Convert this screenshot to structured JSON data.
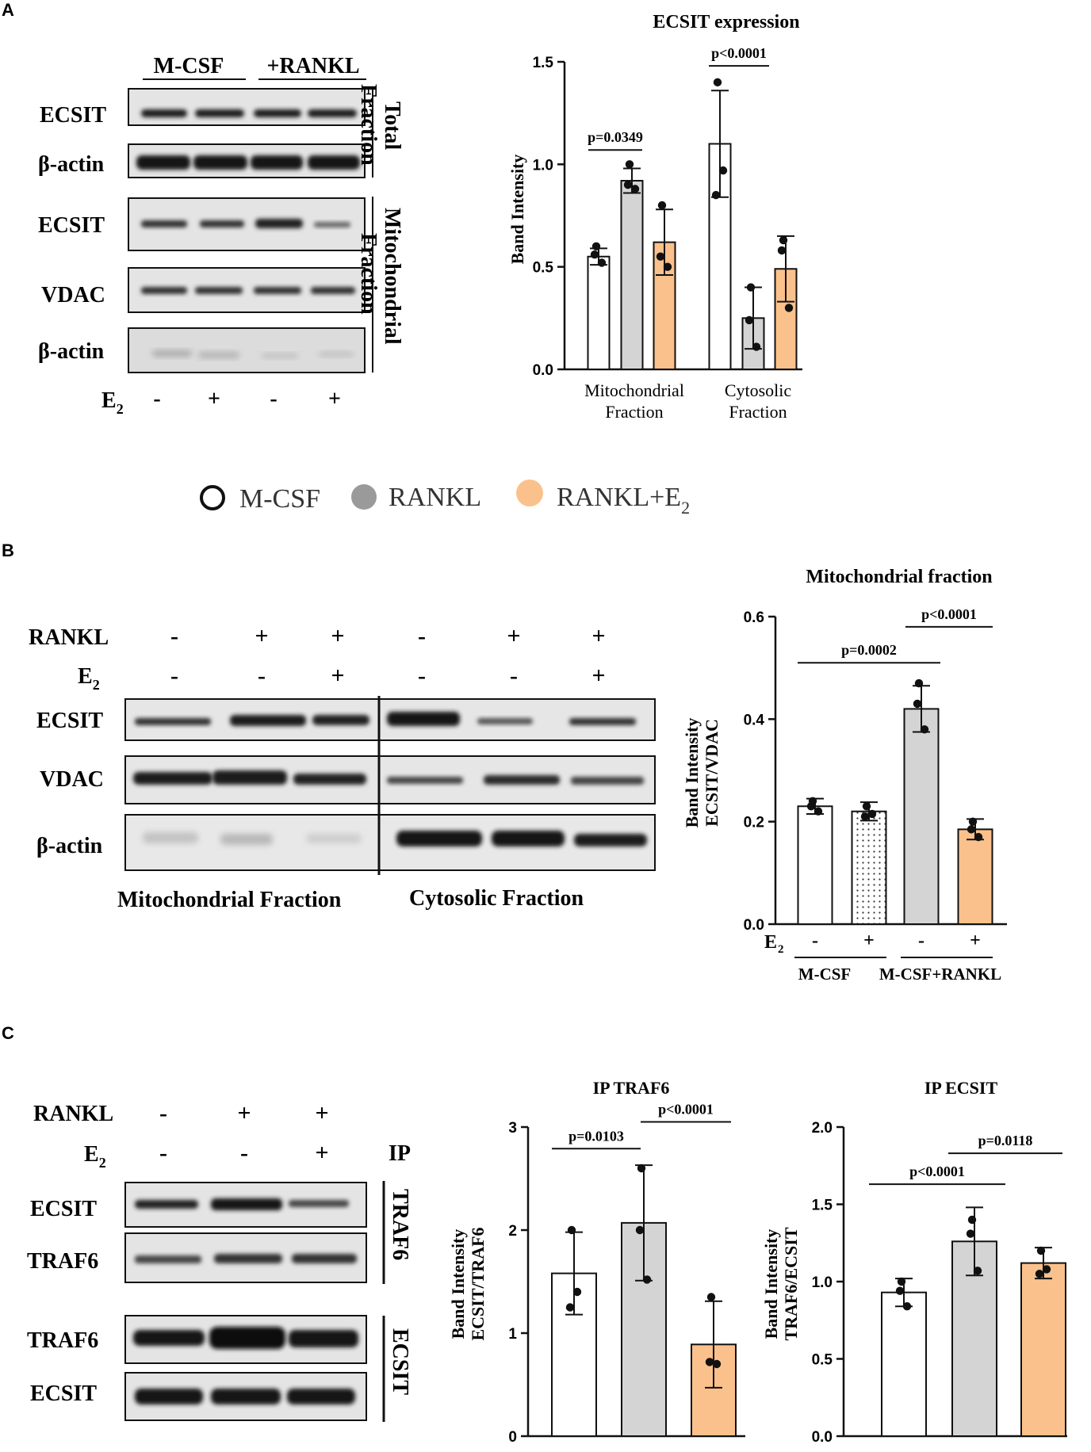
{
  "panels": {
    "a": "A",
    "b": "B",
    "c": "C"
  },
  "colors": {
    "mcsf": "#ffffff",
    "rankl": "#d4d4d4",
    "rankl_e2": "#fbc18c",
    "blot_bg": "#e2e2e2",
    "band": "#1c1c1c"
  },
  "legend": {
    "mcsf": "M-CSF",
    "rankl": "RANKL",
    "rankl_e2_main": "RANKL+E",
    "rankl_e2_sub": "2"
  },
  "e2": {
    "main": "E",
    "sub": "2"
  },
  "blot_a": {
    "groups": [
      "M-CSF",
      "+RANKL"
    ],
    "rows": [
      "ECSIT",
      "β-actin",
      "ECSIT",
      "VDAC",
      "β-actin"
    ],
    "brackets": [
      [
        "Total",
        "Fraction"
      ],
      [
        "Mitochondrial",
        "Fraction"
      ]
    ],
    "e2_signs": [
      "-",
      "+",
      "-",
      "+"
    ]
  },
  "blot_b": {
    "treatment_label": "RANKL",
    "rankl_signs": [
      "-",
      "+",
      "+",
      "-",
      "+",
      "+"
    ],
    "e2_signs": [
      "-",
      "-",
      "+",
      "-",
      "-",
      "+"
    ],
    "rows": [
      "ECSIT",
      "VDAC",
      "β-actin"
    ],
    "fractions": [
      "Mitochondrial Fraction",
      "Cytosolic Fraction"
    ]
  },
  "blot_c": {
    "treatment_label": "RANKL",
    "ip_label": "IP",
    "rankl_signs": [
      "-",
      "+",
      "+"
    ],
    "e2_signs": [
      "-",
      "-",
      "+"
    ],
    "rows_top": [
      "ECSIT",
      "TRAF6"
    ],
    "rows_bottom": [
      "TRAF6",
      "ECSIT"
    ],
    "ip_top": "TRAF6",
    "ip_bottom": "ECSIT"
  },
  "chart_data": [
    {
      "type": "bar",
      "title": "ECSIT expression",
      "ylabel": "Band Intensity",
      "ylim": [
        0,
        1.5
      ],
      "yticks": [
        "0.0",
        "0.5",
        "1.0",
        "1.5"
      ],
      "groups": [
        "Mitochondrial Fraction",
        "Cytosolic Fraction"
      ],
      "group_labels": [
        [
          "Mitochondrial",
          "Fraction"
        ],
        [
          "Cytosolic",
          "Fraction"
        ]
      ],
      "series": [
        {
          "name": "M-CSF",
          "color": "#ffffff",
          "values": [
            0.55,
            1.1
          ],
          "sd": [
            0.04,
            0.26
          ],
          "points": [
            [
              0.6,
              0.52,
              0.56
            ],
            [
              1.4,
              0.97,
              0.85
            ]
          ]
        },
        {
          "name": "RANKL",
          "color": "#d4d4d4",
          "values": [
            0.92,
            0.25
          ],
          "sd": [
            0.06,
            0.15
          ],
          "points": [
            [
              1.0,
              0.88,
              0.9
            ],
            [
              0.4,
              0.11,
              0.24
            ]
          ]
        },
        {
          "name": "RANKL+E2",
          "color": "#fbc18c",
          "values": [
            0.62,
            0.49
          ],
          "sd": [
            0.16,
            0.16
          ],
          "points": [
            [
              0.8,
              0.5,
              0.55
            ],
            [
              0.63,
              0.3,
              0.58
            ]
          ]
        }
      ],
      "annotations": [
        "p=0.0349",
        "p<0.0001"
      ]
    },
    {
      "type": "bar",
      "title": "Mitochondrial fraction",
      "ylabel": [
        "Band Intensity",
        "ECSIT/VDAC"
      ],
      "ylim": [
        0,
        0.6
      ],
      "yticks": [
        "0.0",
        "0.2",
        "0.4",
        "0.6"
      ],
      "categories": [
        "M-CSF -",
        "M-CSF +",
        "M-CSF+RANKL -",
        "M-CSF+RANKL +"
      ],
      "values": [
        0.23,
        0.22,
        0.42,
        0.185
      ],
      "sd": [
        0.015,
        0.018,
        0.045,
        0.02
      ],
      "points": [
        [
          0.24,
          0.22,
          0.23
        ],
        [
          0.23,
          0.215,
          0.21
        ],
        [
          0.47,
          0.38,
          0.43
        ],
        [
          0.2,
          0.17,
          0.185
        ]
      ],
      "colors": [
        "#ffffff",
        "dotted",
        "#d4d4d4",
        "#fbc18c"
      ],
      "e2_signs": [
        "-",
        "+",
        "-",
        "+"
      ],
      "group_labels": [
        "M-CSF",
        "M-CSF+RANKL"
      ],
      "annotations": [
        "p=0.0002",
        "p<0.0001"
      ]
    },
    {
      "type": "bar",
      "title": "IP  TRAF6",
      "ylabel": [
        "Band Intensity",
        "ECSIT/TRAF6"
      ],
      "ylim": [
        0,
        3
      ],
      "yticks": [
        "0",
        "1",
        "2",
        "3"
      ],
      "categories": [
        "M-CSF",
        "RANKL",
        "RANKL+E2"
      ],
      "values": [
        1.58,
        2.07,
        0.89
      ],
      "sd": [
        0.4,
        0.56,
        0.42
      ],
      "points": [
        [
          2.0,
          1.4,
          1.25
        ],
        [
          2.6,
          1.52,
          2.0
        ],
        [
          1.35,
          0.7,
          0.72
        ]
      ],
      "colors": [
        "#ffffff",
        "#d4d4d4",
        "#fbc18c"
      ],
      "annotations": [
        "p=0.0103",
        "p<0.0001"
      ]
    },
    {
      "type": "bar",
      "title": "IP  ECSIT",
      "ylabel": [
        "Band Intensity",
        "TRAF6/ECSIT"
      ],
      "ylim": [
        0,
        2.0
      ],
      "yticks": [
        "0.0",
        "0.5",
        "1.0",
        "1.5",
        "2.0"
      ],
      "categories": [
        "M-CSF",
        "RANKL",
        "RANKL+E2"
      ],
      "values": [
        0.93,
        1.26,
        1.12
      ],
      "sd": [
        0.09,
        0.22,
        0.1
      ],
      "points": [
        [
          1.0,
          0.84,
          0.94
        ],
        [
          1.4,
          1.07,
          1.31
        ],
        [
          1.2,
          1.08,
          1.05
        ]
      ],
      "colors": [
        "#ffffff",
        "#d4d4d4",
        "#fbc18c"
      ],
      "annotations": [
        "p<0.0001",
        "p=0.0118"
      ]
    }
  ]
}
